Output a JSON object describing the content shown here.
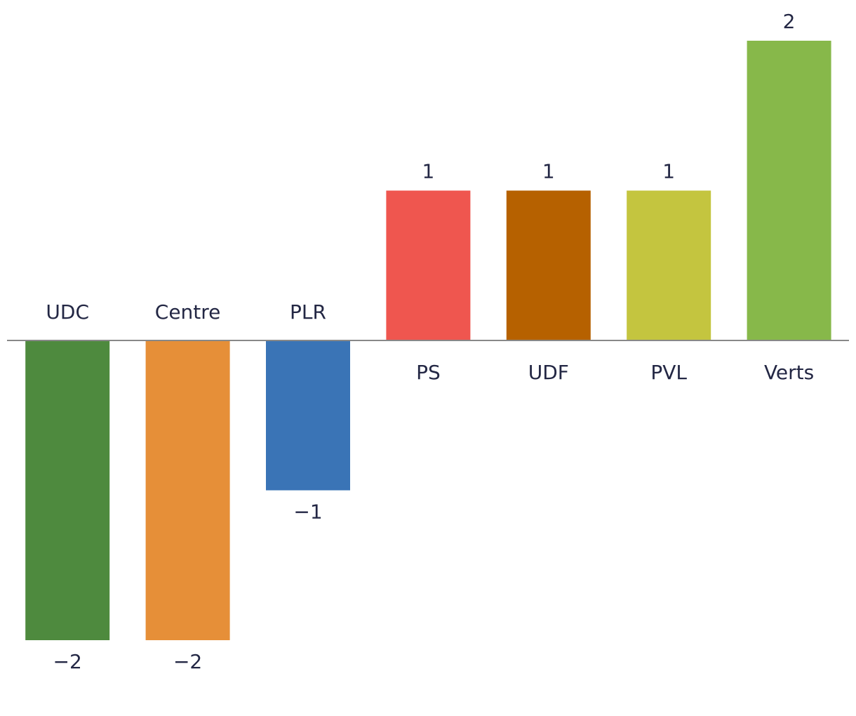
{
  "chart_data": {
    "type": "bar",
    "title": "",
    "xlabel": "",
    "ylabel": "",
    "categories": [
      "UDC",
      "Centre",
      "PLR",
      "PS",
      "UDF",
      "PVL",
      "Verts"
    ],
    "values": [
      -2,
      -2,
      -1,
      1,
      1,
      1,
      2
    ],
    "value_labels": [
      "−2",
      "−2",
      "−1",
      "1",
      "1",
      "1",
      "2"
    ],
    "colors": [
      "#4e8a3e",
      "#e68f38",
      "#3a74b6",
      "#ef564f",
      "#b66100",
      "#c4c53f",
      "#87b84a"
    ],
    "ylim": [
      -2,
      2
    ],
    "grid": false,
    "legend": "none",
    "baseline_color": "#888888",
    "text_color": "#232744"
  }
}
